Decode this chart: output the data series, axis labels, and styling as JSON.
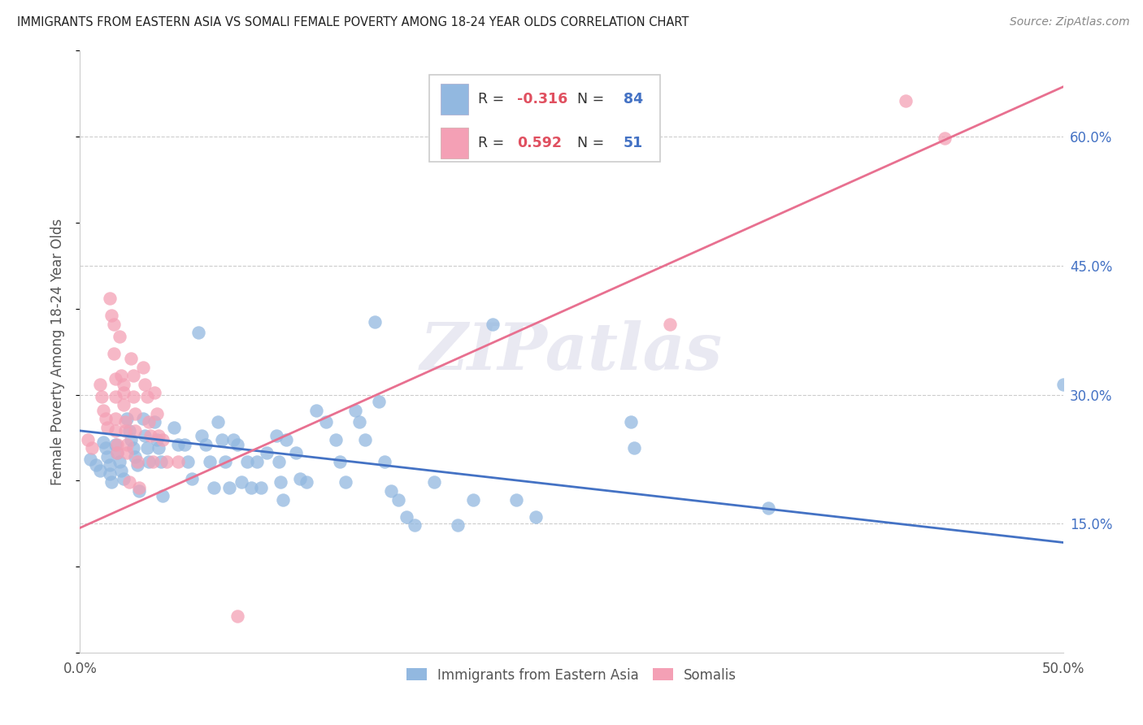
{
  "title": "IMMIGRANTS FROM EASTERN ASIA VS SOMALI FEMALE POVERTY AMONG 18-24 YEAR OLDS CORRELATION CHART",
  "source": "Source: ZipAtlas.com",
  "ylabel": "Female Poverty Among 18-24 Year Olds",
  "blue_R": -0.316,
  "blue_N": 84,
  "pink_R": 0.592,
  "pink_N": 51,
  "xlim": [
    0.0,
    0.5
  ],
  "ylim": [
    0.0,
    0.7
  ],
  "watermark": "ZIPatlas",
  "legend_label_blue": "Immigrants from Eastern Asia",
  "legend_label_pink": "Somalis",
  "blue_color": "#92b8e0",
  "pink_color": "#f4a0b5",
  "blue_line_color": "#4472c4",
  "pink_line_color": "#e87090",
  "blue_scatter": [
    [
      0.005,
      0.225
    ],
    [
      0.008,
      0.218
    ],
    [
      0.01,
      0.212
    ],
    [
      0.012,
      0.245
    ],
    [
      0.013,
      0.238
    ],
    [
      0.014,
      0.228
    ],
    [
      0.015,
      0.218
    ],
    [
      0.015,
      0.208
    ],
    [
      0.016,
      0.198
    ],
    [
      0.018,
      0.242
    ],
    [
      0.019,
      0.232
    ],
    [
      0.02,
      0.222
    ],
    [
      0.021,
      0.212
    ],
    [
      0.022,
      0.202
    ],
    [
      0.024,
      0.272
    ],
    [
      0.025,
      0.258
    ],
    [
      0.026,
      0.248
    ],
    [
      0.027,
      0.238
    ],
    [
      0.028,
      0.228
    ],
    [
      0.029,
      0.218
    ],
    [
      0.03,
      0.188
    ],
    [
      0.032,
      0.272
    ],
    [
      0.033,
      0.252
    ],
    [
      0.034,
      0.238
    ],
    [
      0.035,
      0.222
    ],
    [
      0.038,
      0.268
    ],
    [
      0.039,
      0.248
    ],
    [
      0.04,
      0.238
    ],
    [
      0.041,
      0.222
    ],
    [
      0.042,
      0.182
    ],
    [
      0.048,
      0.262
    ],
    [
      0.05,
      0.242
    ],
    [
      0.053,
      0.242
    ],
    [
      0.055,
      0.222
    ],
    [
      0.057,
      0.202
    ],
    [
      0.06,
      0.372
    ],
    [
      0.062,
      0.252
    ],
    [
      0.064,
      0.242
    ],
    [
      0.066,
      0.222
    ],
    [
      0.068,
      0.192
    ],
    [
      0.07,
      0.268
    ],
    [
      0.072,
      0.248
    ],
    [
      0.074,
      0.222
    ],
    [
      0.076,
      0.192
    ],
    [
      0.078,
      0.248
    ],
    [
      0.08,
      0.242
    ],
    [
      0.082,
      0.198
    ],
    [
      0.085,
      0.222
    ],
    [
      0.087,
      0.192
    ],
    [
      0.09,
      0.222
    ],
    [
      0.092,
      0.192
    ],
    [
      0.095,
      0.232
    ],
    [
      0.1,
      0.252
    ],
    [
      0.101,
      0.222
    ],
    [
      0.102,
      0.198
    ],
    [
      0.103,
      0.178
    ],
    [
      0.105,
      0.248
    ],
    [
      0.11,
      0.232
    ],
    [
      0.112,
      0.202
    ],
    [
      0.115,
      0.198
    ],
    [
      0.12,
      0.282
    ],
    [
      0.125,
      0.268
    ],
    [
      0.13,
      0.248
    ],
    [
      0.132,
      0.222
    ],
    [
      0.135,
      0.198
    ],
    [
      0.14,
      0.282
    ],
    [
      0.142,
      0.268
    ],
    [
      0.145,
      0.248
    ],
    [
      0.15,
      0.385
    ],
    [
      0.152,
      0.292
    ],
    [
      0.155,
      0.222
    ],
    [
      0.158,
      0.188
    ],
    [
      0.162,
      0.178
    ],
    [
      0.166,
      0.158
    ],
    [
      0.17,
      0.148
    ],
    [
      0.18,
      0.198
    ],
    [
      0.192,
      0.148
    ],
    [
      0.2,
      0.178
    ],
    [
      0.21,
      0.382
    ],
    [
      0.222,
      0.178
    ],
    [
      0.232,
      0.158
    ],
    [
      0.28,
      0.268
    ],
    [
      0.282,
      0.238
    ],
    [
      0.35,
      0.168
    ],
    [
      0.5,
      0.312
    ]
  ],
  "pink_scatter": [
    [
      0.004,
      0.248
    ],
    [
      0.006,
      0.238
    ],
    [
      0.01,
      0.312
    ],
    [
      0.011,
      0.298
    ],
    [
      0.012,
      0.282
    ],
    [
      0.013,
      0.272
    ],
    [
      0.014,
      0.262
    ],
    [
      0.015,
      0.412
    ],
    [
      0.016,
      0.392
    ],
    [
      0.017,
      0.382
    ],
    [
      0.017,
      0.348
    ],
    [
      0.018,
      0.318
    ],
    [
      0.018,
      0.298
    ],
    [
      0.018,
      0.272
    ],
    [
      0.018,
      0.258
    ],
    [
      0.019,
      0.242
    ],
    [
      0.019,
      0.232
    ],
    [
      0.02,
      0.368
    ],
    [
      0.021,
      0.322
    ],
    [
      0.022,
      0.312
    ],
    [
      0.022,
      0.302
    ],
    [
      0.022,
      0.288
    ],
    [
      0.023,
      0.268
    ],
    [
      0.023,
      0.258
    ],
    [
      0.024,
      0.242
    ],
    [
      0.024,
      0.232
    ],
    [
      0.025,
      0.198
    ],
    [
      0.026,
      0.342
    ],
    [
      0.027,
      0.322
    ],
    [
      0.027,
      0.298
    ],
    [
      0.028,
      0.278
    ],
    [
      0.028,
      0.258
    ],
    [
      0.029,
      0.222
    ],
    [
      0.03,
      0.192
    ],
    [
      0.032,
      0.332
    ],
    [
      0.033,
      0.312
    ],
    [
      0.034,
      0.298
    ],
    [
      0.035,
      0.268
    ],
    [
      0.036,
      0.252
    ],
    [
      0.037,
      0.222
    ],
    [
      0.038,
      0.302
    ],
    [
      0.039,
      0.278
    ],
    [
      0.04,
      0.252
    ],
    [
      0.042,
      0.248
    ],
    [
      0.044,
      0.222
    ],
    [
      0.05,
      0.222
    ],
    [
      0.08,
      0.042
    ],
    [
      0.3,
      0.382
    ],
    [
      0.42,
      0.642
    ],
    [
      0.44,
      0.598
    ]
  ],
  "blue_line_endpoints": [
    [
      0.0,
      0.258
    ],
    [
      0.5,
      0.128
    ]
  ],
  "pink_line_endpoints": [
    [
      0.0,
      0.145
    ],
    [
      0.5,
      0.658
    ]
  ]
}
